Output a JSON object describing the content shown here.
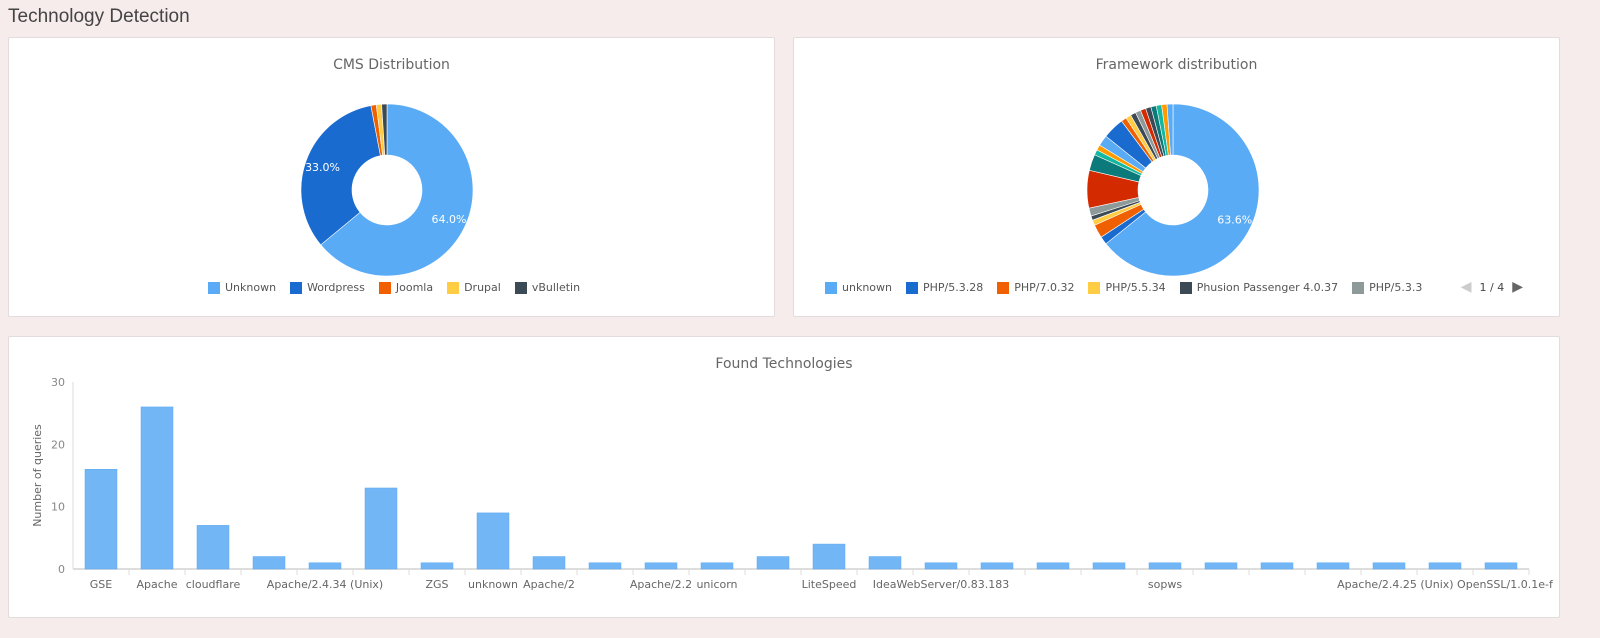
{
  "page_title": "Technology Detection",
  "colors": {
    "unknown": "#5aabf5",
    "blue": "#1a6bd0",
    "orange": "#f06000",
    "yellow": "#ffcc44",
    "dark": "#3c4a55",
    "gray": "#8e9a9a",
    "red": "#d42a00",
    "teal": "#0c7a7a",
    "green": "#14b8a0",
    "amber": "#ff9a00",
    "bar": "#72b6f6"
  },
  "chart_data": [
    {
      "type": "pie",
      "title": "CMS Distribution",
      "donut": true,
      "slices": [
        {
          "name": "Unknown",
          "value": 64.0,
          "label": "64.0%",
          "color": "#5aabf5"
        },
        {
          "name": "Wordpress",
          "value": 33.0,
          "label": "33.0%",
          "color": "#1a6bd0"
        },
        {
          "name": "Joomla",
          "value": 1.0,
          "color": "#f06000"
        },
        {
          "name": "Drupal",
          "value": 1.0,
          "color": "#ffcc44"
        },
        {
          "name": "vBulletin",
          "value": 1.0,
          "color": "#3c4a55"
        }
      ],
      "legend_position": "bottom"
    },
    {
      "type": "pie",
      "title": "Framework distribution",
      "donut": true,
      "slices": [
        {
          "name": "unknown",
          "value": 63.6,
          "label": "63.6%",
          "color": "#5aabf5"
        },
        {
          "name": "PHP/5.3.28",
          "value": 1.5,
          "color": "#1a6bd0"
        },
        {
          "name": "PHP/7.0.32",
          "value": 2.5,
          "color": "#f06000"
        },
        {
          "name": "PHP/5.5.34",
          "value": 1,
          "color": "#ffcc44"
        },
        {
          "name": "Phusion Passenger 4.0.37",
          "value": 0.8,
          "color": "#3c4a55"
        },
        {
          "name": "PHP/5.3.3",
          "value": 1.5,
          "color": "#8e9a9a"
        },
        {
          "value": 7,
          "color": "#d42a00"
        },
        {
          "value": 3,
          "color": "#0c7a7a"
        },
        {
          "value": 1,
          "color": "#14b8a0"
        },
        {
          "value": 1,
          "color": "#ff9a00"
        },
        {
          "value": 2,
          "color": "#5aabf5"
        },
        {
          "value": 4,
          "color": "#1a6bd0"
        },
        {
          "value": 1,
          "color": "#f06000"
        },
        {
          "value": 1,
          "color": "#ffcc44"
        },
        {
          "value": 1,
          "color": "#3c4a55"
        },
        {
          "value": 1,
          "color": "#8e9a9a"
        },
        {
          "value": 1,
          "color": "#d42a00"
        },
        {
          "value": 1,
          "color": "#3c4a55"
        },
        {
          "value": 1,
          "color": "#0c7a7a"
        },
        {
          "value": 1,
          "color": "#14b8a0"
        },
        {
          "value": 1,
          "color": "#ff9a00"
        },
        {
          "value": 1.1,
          "color": "#5aabf5"
        }
      ],
      "legend_position": "bottom",
      "legend_page": "1 / 4"
    },
    {
      "type": "bar",
      "title": "Found Technologies",
      "ylabel": "Number of queries",
      "ylim": [
        0,
        30
      ],
      "yticks": [
        "0",
        "10",
        "20",
        "30"
      ],
      "categories": [
        "GSE",
        "Apache",
        "cloudflare",
        "",
        "Apache/2.4.34 (Unix)",
        "",
        "ZGS",
        "unknown",
        "Apache/2",
        "",
        "Apache/2.2",
        "unicorn",
        "",
        "LiteSpeed",
        "",
        "IdeaWebServer/0.83.183",
        "",
        "",
        "",
        "sopws",
        "",
        "",
        "",
        "",
        "Apache/2.4.25 (Unix) OpenSSL/1.0.1e-f",
        ""
      ],
      "values": [
        16,
        26,
        7,
        2,
        1,
        13,
        1,
        9,
        2,
        1,
        1,
        1,
        2,
        4,
        2,
        1,
        1,
        1,
        1,
        1,
        1,
        1,
        1,
        1,
        1,
        1
      ]
    }
  ]
}
